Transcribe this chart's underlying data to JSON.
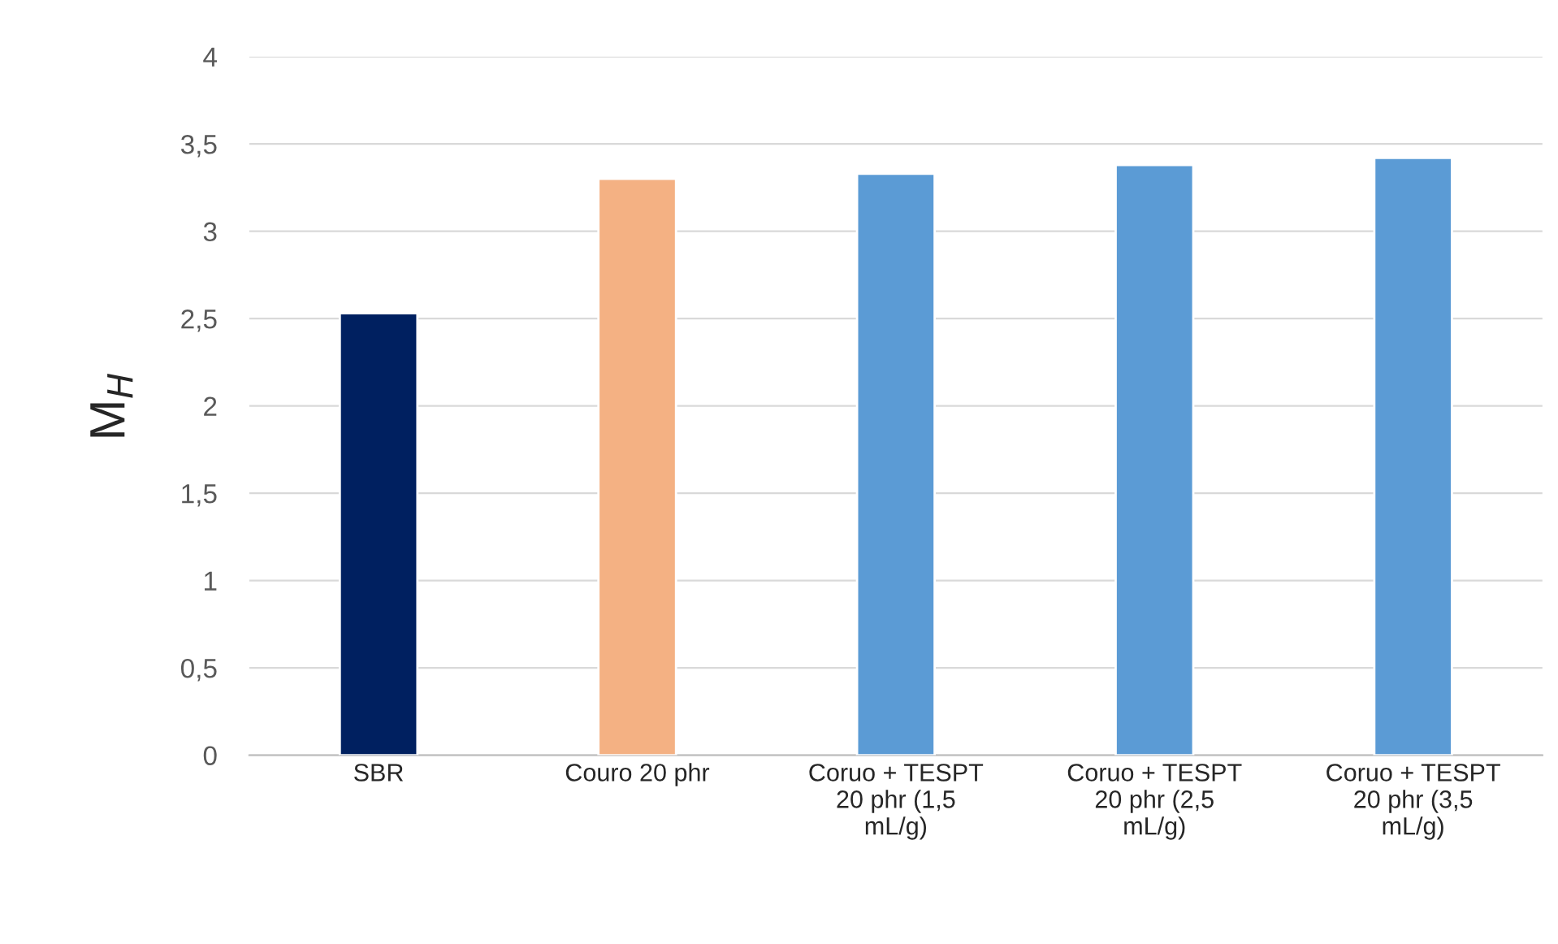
{
  "chart_data": {
    "type": "bar",
    "ylabel": "M$_{H}$",
    "categories": [
      "SBR",
      "Couro 20 phr",
      "Coruo + TESPT\n20 phr (1,5\nmL/g)",
      "Coruo + TESPT\n20 phr (2,5\nmL/g)",
      "Coruo + TESPT\n20 phr (3,5\nmL/g)"
    ],
    "values": [
      2.53,
      3.3,
      3.33,
      3.38,
      3.42
    ],
    "colors": [
      "#002060",
      "#f4b183",
      "#5b9bd5",
      "#5b9bd5",
      "#5b9bd5"
    ],
    "ylim": [
      0,
      4
    ],
    "yticks": [
      0,
      {
        "value": 0.5,
        "label": "0,5"
      },
      1,
      {
        "value": 1.5,
        "label": "1,5"
      },
      2,
      {
        "value": 2.5,
        "label": "2,5"
      },
      3,
      {
        "value": 3.5,
        "label": "3,5"
      },
      4
    ],
    "grid": "y",
    "legend": false
  }
}
